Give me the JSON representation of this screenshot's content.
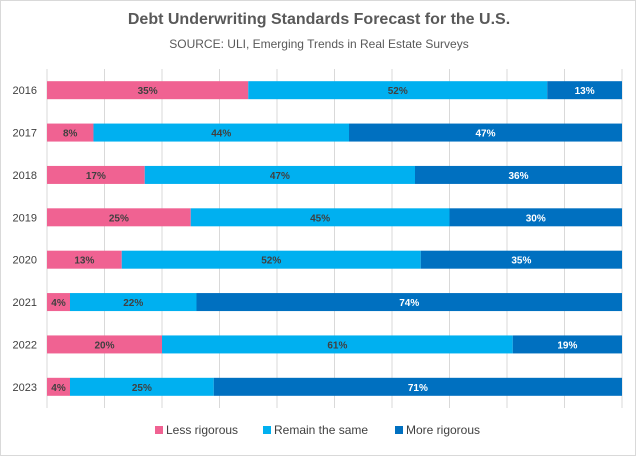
{
  "chart_data": {
    "type": "bar",
    "orientation": "horizontal",
    "stacked": true,
    "percent_stacked": true,
    "title": "Debt Underwriting Standards Forecast for the U.S.",
    "subtitle": "SOURCE: ULI, Emerging Trends in Real Estate Surveys",
    "categories": [
      "2016",
      "2017",
      "2018",
      "2019",
      "2020",
      "2021",
      "2022",
      "2023"
    ],
    "series": [
      {
        "name": "Less rigorous",
        "color": "#f06292",
        "values": [
          35,
          8,
          17,
          25,
          13,
          4,
          20,
          4
        ],
        "labels": [
          "35%",
          "8%",
          "17%",
          "25%",
          "13%",
          "4%",
          "20%",
          "4%"
        ],
        "label_color": "#404040"
      },
      {
        "name": "Remain the same",
        "color": "#00b0f0",
        "values": [
          52,
          44,
          47,
          45,
          52,
          22,
          61,
          25
        ],
        "labels": [
          "52%",
          "44%",
          "47%",
          "45%",
          "52%",
          "22%",
          "61%",
          "25%"
        ],
        "label_color": "#404040"
      },
      {
        "name": "More rigorous",
        "color": "#0070c0",
        "values": [
          13,
          47,
          36,
          30,
          35,
          74,
          19,
          71
        ],
        "labels": [
          "13%",
          "47%",
          "36%",
          "30%",
          "35%",
          "74%",
          "19%",
          "71%"
        ],
        "label_color": "#ffffff"
      }
    ],
    "grid": true,
    "legend_position": "bottom"
  }
}
